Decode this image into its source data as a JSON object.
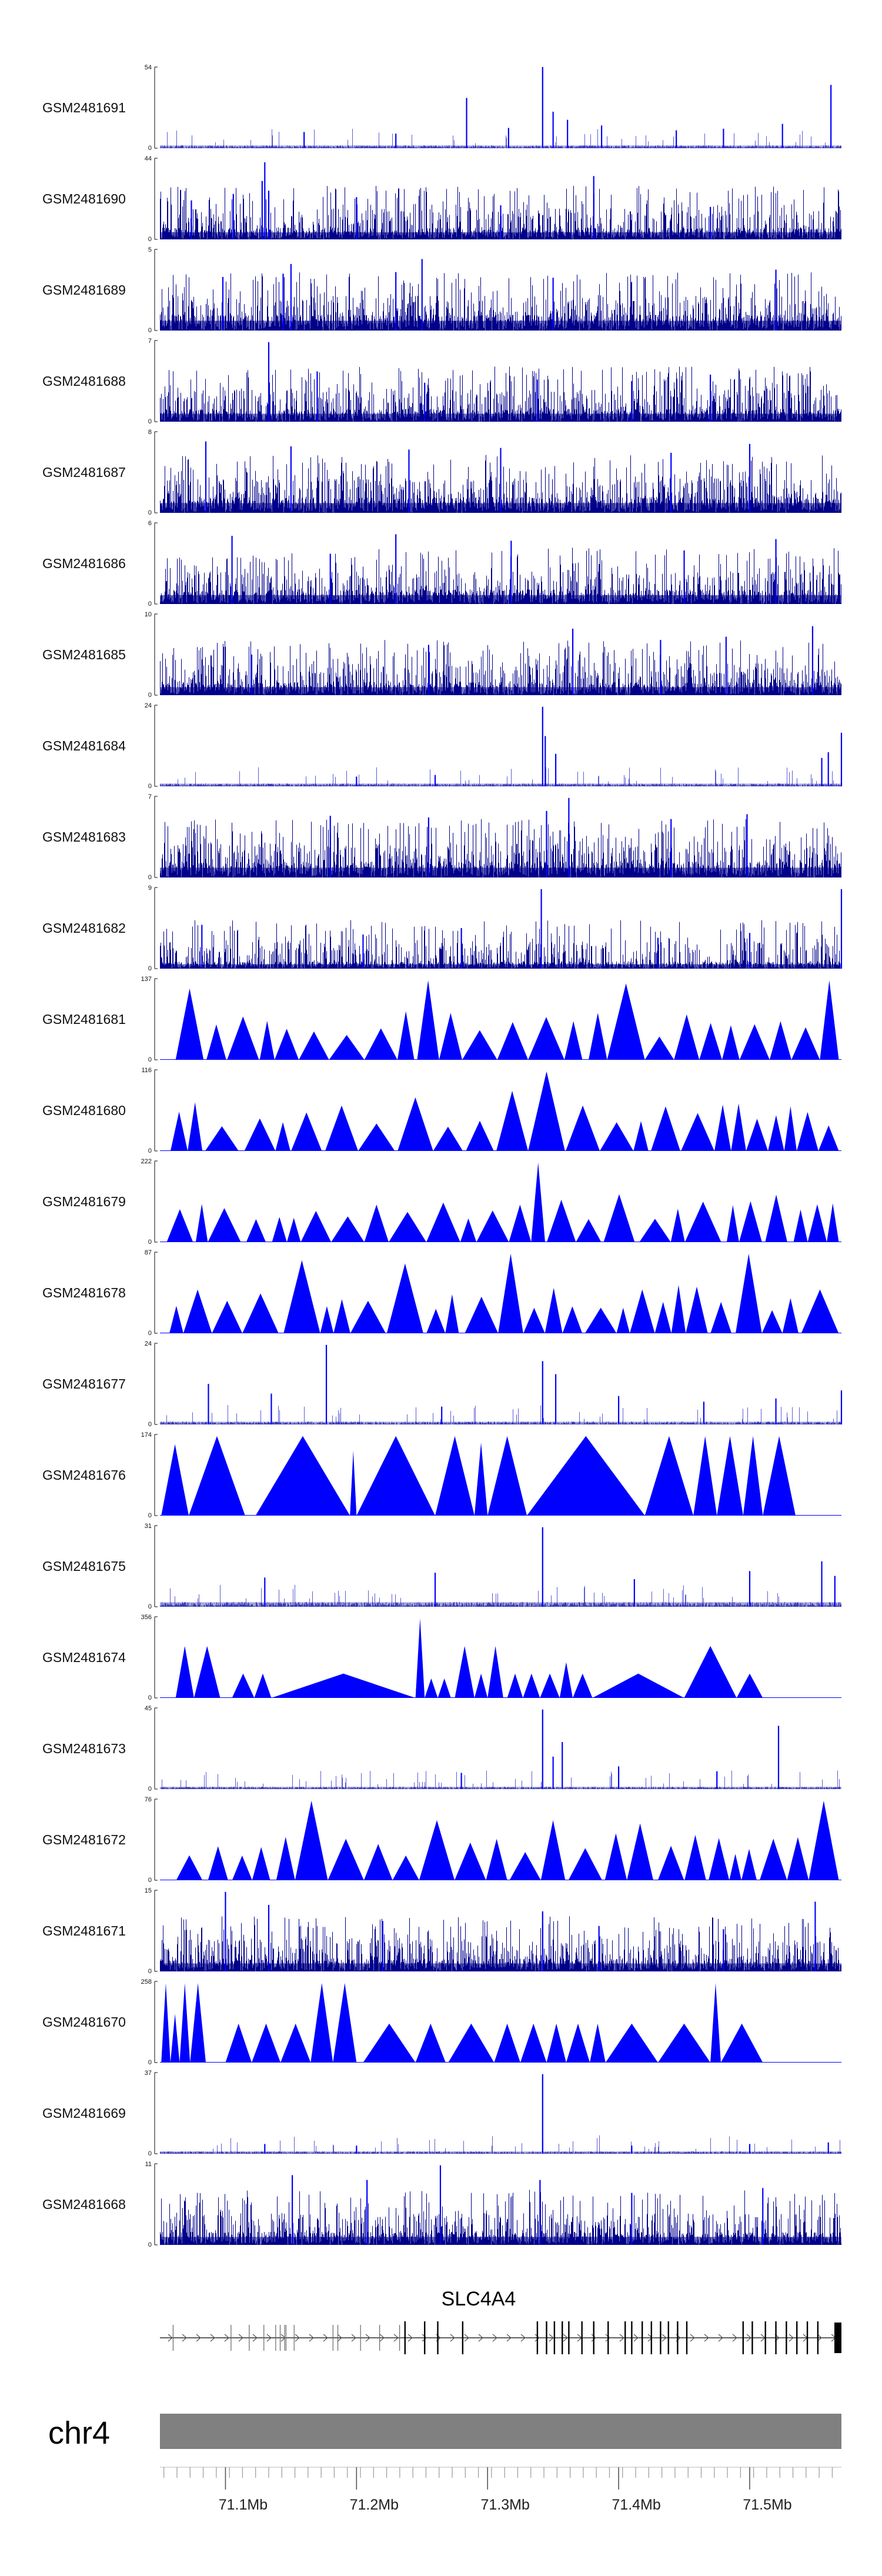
{
  "chart_data": {
    "type": "area",
    "title": "",
    "colors": {
      "fill": "#0000ff",
      "dense": "#00008b",
      "spike": "#5a5ad8",
      "axis": "#333333",
      "chromosome": "#808080",
      "gene": "#000000"
    },
    "x_range": [
      71.05,
      71.57
    ],
    "x_ticks": [
      71.1,
      71.2,
      71.3,
      71.4,
      71.5
    ],
    "x_tick_labels": [
      "71.1Mb",
      "71.2Mb",
      "71.3Mb",
      "71.4Mb",
      "71.5Mb"
    ],
    "chromosome": "chr4",
    "gene": {
      "name": "SLC4A4",
      "start": 71.05,
      "end": 71.57,
      "exons": [
        71.237,
        71.252,
        71.262,
        71.281,
        71.338,
        71.345,
        71.351,
        71.357,
        71.362,
        71.372,
        71.381,
        71.392,
        71.405,
        71.41,
        71.418,
        71.425,
        71.432,
        71.438,
        71.445,
        71.452,
        71.495,
        71.502,
        71.512,
        71.52,
        71.528,
        71.536,
        71.544,
        71.552
      ]
    },
    "tracks": [
      {
        "name": "GSM2481691",
        "ymax": "54",
        "ymax_value": 54,
        "style": "sparse",
        "base": 0.06,
        "spikes": [
          [
            71.284,
            0.62
          ],
          [
            71.342,
            1.0
          ],
          [
            71.35,
            0.45
          ],
          [
            71.361,
            0.35
          ],
          [
            71.387,
            0.28
          ],
          [
            71.444,
            0.22
          ],
          [
            71.562,
            0.78
          ],
          [
            71.16,
            0.2
          ],
          [
            71.23,
            0.18
          ],
          [
            71.316,
            0.25
          ],
          [
            71.48,
            0.24
          ],
          [
            71.525,
            0.3
          ]
        ]
      },
      {
        "name": "GSM2481690",
        "ymax": "44",
        "ymax_value": 44,
        "style": "dense",
        "base": 0.16,
        "spikes": [
          [
            71.128,
            0.72
          ],
          [
            71.133,
            0.6
          ],
          [
            71.13,
            0.95
          ],
          [
            71.381,
            0.78
          ],
          [
            71.2,
            0.52
          ],
          [
            71.074,
            0.48
          ],
          [
            71.106,
            0.56
          ],
          [
            71.31,
            0.42
          ],
          [
            71.47,
            0.4
          ]
        ]
      },
      {
        "name": "GSM2481689",
        "ymax": "5",
        "ymax_value": 5,
        "style": "dense",
        "base": 0.22,
        "spikes": [
          [
            71.15,
            0.82
          ],
          [
            71.144,
            0.7
          ],
          [
            71.23,
            0.72
          ],
          [
            71.25,
            0.88
          ],
          [
            71.35,
            0.65
          ],
          [
            71.52,
            0.75
          ],
          [
            71.098,
            0.66
          ]
        ]
      },
      {
        "name": "GSM2481688",
        "ymax": "7",
        "ymax_value": 7,
        "style": "dense",
        "base": 0.18,
        "spikes": [
          [
            71.133,
            0.98
          ],
          [
            71.17,
            0.62
          ],
          [
            71.338,
            0.52
          ],
          [
            71.47,
            0.58
          ],
          [
            71.252,
            0.48
          ],
          [
            71.41,
            0.5
          ]
        ]
      },
      {
        "name": "GSM2481687",
        "ymax": "8",
        "ymax_value": 8,
        "style": "dense",
        "base": 0.22,
        "spikes": [
          [
            71.085,
            0.88
          ],
          [
            71.15,
            0.82
          ],
          [
            71.24,
            0.78
          ],
          [
            71.31,
            0.8
          ],
          [
            71.44,
            0.74
          ],
          [
            71.5,
            0.85
          ]
        ]
      },
      {
        "name": "GSM2481686",
        "ymax": "6",
        "ymax_value": 6,
        "style": "dense",
        "base": 0.2,
        "spikes": [
          [
            71.105,
            0.84
          ],
          [
            71.23,
            0.86
          ],
          [
            71.318,
            0.78
          ],
          [
            71.45,
            0.66
          ],
          [
            71.52,
            0.8
          ],
          [
            71.18,
            0.62
          ]
        ]
      },
      {
        "name": "GSM2481685",
        "ymax": "10",
        "ymax_value": 10,
        "style": "dense",
        "base": 0.18,
        "spikes": [
          [
            71.365,
            0.82
          ],
          [
            71.432,
            0.68
          ],
          [
            71.548,
            0.85
          ],
          [
            71.255,
            0.62
          ],
          [
            71.12,
            0.5
          ],
          [
            71.482,
            0.72
          ]
        ]
      },
      {
        "name": "GSM2481684",
        "ymax": "24",
        "ymax_value": 24,
        "style": "sparse",
        "base": 0.06,
        "spikes": [
          [
            71.342,
            0.98
          ],
          [
            71.344,
            0.62
          ],
          [
            71.352,
            0.4
          ],
          [
            71.57,
            0.66
          ],
          [
            71.555,
            0.35
          ],
          [
            71.56,
            0.42
          ],
          [
            71.26,
            0.14
          ],
          [
            71.2,
            0.12
          ]
        ]
      },
      {
        "name": "GSM2481683",
        "ymax": "7",
        "ymax_value": 7,
        "style": "dense",
        "base": 0.22,
        "spikes": [
          [
            71.362,
            0.98
          ],
          [
            71.345,
            0.82
          ],
          [
            71.18,
            0.76
          ],
          [
            71.255,
            0.74
          ],
          [
            71.498,
            0.78
          ],
          [
            71.44,
            0.72
          ]
        ]
      },
      {
        "name": "GSM2481682",
        "ymax": "9",
        "ymax_value": 9,
        "style": "dense",
        "base": 0.1,
        "spikes": [
          [
            71.341,
            0.98
          ],
          [
            71.57,
            0.98
          ],
          [
            71.082,
            0.54
          ],
          [
            71.205,
            0.42
          ],
          [
            71.28,
            0.5
          ],
          [
            71.43,
            0.38
          ],
          [
            71.5,
            0.44
          ]
        ]
      },
      {
        "name": "GSM2481681",
        "ymax": "137",
        "ymax_value": 137,
        "style": "tri",
        "seed": 11,
        "peaks": [
          [
            71.074,
            0.88
          ],
          [
            71.085,
            0.4
          ],
          [
            71.25,
            0.98
          ],
          [
            71.24,
            0.6
          ],
          [
            71.264,
            0.5
          ],
          [
            71.401,
            0.94
          ],
          [
            71.444,
            0.56
          ],
          [
            71.566,
            0.98
          ],
          [
            71.56,
            0.5
          ]
        ]
      },
      {
        "name": "GSM2481680",
        "ymax": "116",
        "ymax_value": 116,
        "style": "tri",
        "seed": 23,
        "peaks": [
          [
            71.342,
            0.98
          ],
          [
            71.317,
            0.74
          ],
          [
            71.361,
            0.56
          ],
          [
            71.18,
            0.56
          ],
          [
            71.24,
            0.66
          ],
          [
            71.49,
            0.5
          ],
          [
            71.08,
            0.6
          ],
          [
            71.55,
            0.48
          ]
        ]
      },
      {
        "name": "GSM2481679",
        "ymax": "222",
        "ymax_value": 222,
        "style": "tri",
        "seed": 37,
        "peaks": [
          [
            71.342,
            0.98
          ],
          [
            71.338,
            0.5
          ],
          [
            71.365,
            0.32
          ],
          [
            71.062,
            0.3
          ],
          [
            71.09,
            0.22
          ],
          [
            71.458,
            0.22
          ],
          [
            71.545,
            0.2
          ]
        ]
      },
      {
        "name": "GSM2481678",
        "ymax": "87",
        "ymax_value": 87,
        "style": "tri",
        "seed": 41,
        "peaks": [
          [
            71.145,
            0.9
          ],
          [
            71.24,
            0.86
          ],
          [
            71.27,
            0.48
          ],
          [
            71.31,
            0.98
          ],
          [
            71.344,
            0.56
          ],
          [
            71.41,
            0.54
          ],
          [
            71.5,
            0.98
          ],
          [
            71.505,
            0.5
          ],
          [
            71.56,
            0.42
          ]
        ]
      },
      {
        "name": "GSM2481677",
        "ymax": "24",
        "ymax_value": 24,
        "style": "sparse",
        "base": 0.06,
        "spikes": [
          [
            71.087,
            0.5
          ],
          [
            71.135,
            0.38
          ],
          [
            71.177,
            0.98
          ],
          [
            71.342,
            0.78
          ],
          [
            71.352,
            0.62
          ],
          [
            71.4,
            0.35
          ],
          [
            71.52,
            0.32
          ],
          [
            71.57,
            0.42
          ],
          [
            71.265,
            0.22
          ],
          [
            71.465,
            0.28
          ]
        ]
      },
      {
        "name": "GSM2481676",
        "ymax": "174",
        "ymax_value": 174,
        "style": "tri",
        "seed": 53,
        "fixed": [
          [
            71.051,
            71.072,
            0.88
          ],
          [
            71.072,
            71.115,
            0.98
          ],
          [
            71.123,
            71.195,
            0.98
          ],
          [
            71.195,
            71.2,
            0.8
          ],
          [
            71.2,
            71.26,
            0.98
          ],
          [
            71.26,
            71.29,
            0.98
          ],
          [
            71.29,
            71.3,
            0.9
          ],
          [
            71.3,
            71.33,
            0.98
          ],
          [
            71.33,
            71.42,
            0.98
          ],
          [
            71.42,
            71.457,
            0.98
          ],
          [
            71.457,
            71.475,
            0.98
          ],
          [
            71.475,
            71.495,
            0.98
          ],
          [
            71.495,
            71.51,
            0.98
          ],
          [
            71.51,
            71.535,
            0.98
          ]
        ]
      },
      {
        "name": "GSM2481675",
        "ymax": "31",
        "ymax_value": 31,
        "style": "sparse",
        "base": 0.1,
        "spikes": [
          [
            71.342,
            0.98
          ],
          [
            71.26,
            0.42
          ],
          [
            71.13,
            0.36
          ],
          [
            71.412,
            0.34
          ],
          [
            71.5,
            0.44
          ],
          [
            71.555,
            0.56
          ],
          [
            71.565,
            0.38
          ]
        ]
      },
      {
        "name": "GSM2481674",
        "ymax": "356",
        "ymax_value": 356,
        "style": "tri",
        "seed": 61,
        "fixed": [
          [
            71.062,
            71.076,
            0.64
          ],
          [
            71.076,
            71.096,
            0.64
          ],
          [
            71.105,
            71.122,
            0.3
          ],
          [
            71.122,
            71.135,
            0.3
          ],
          [
            71.135,
            71.245,
            0.3
          ],
          [
            71.245,
            71.252,
            0.98
          ],
          [
            71.252,
            71.262,
            0.24
          ],
          [
            71.262,
            71.272,
            0.24
          ],
          [
            71.275,
            71.29,
            0.64
          ],
          [
            71.29,
            71.3,
            0.3
          ],
          [
            71.3,
            71.312,
            0.64
          ],
          [
            71.315,
            71.327,
            0.3
          ],
          [
            71.327,
            71.34,
            0.3
          ],
          [
            71.34,
            71.355,
            0.3
          ],
          [
            71.355,
            71.365,
            0.44
          ],
          [
            71.365,
            71.38,
            0.3
          ],
          [
            71.38,
            71.45,
            0.3
          ],
          [
            71.45,
            71.49,
            0.64
          ],
          [
            71.49,
            71.51,
            0.3
          ]
        ]
      },
      {
        "name": "GSM2481673",
        "ymax": "45",
        "ymax_value": 45,
        "style": "sparse",
        "base": 0.05,
        "spikes": [
          [
            71.342,
            0.98
          ],
          [
            71.357,
            0.58
          ],
          [
            71.35,
            0.4
          ],
          [
            71.4,
            0.28
          ],
          [
            71.475,
            0.22
          ],
          [
            71.522,
            0.78
          ],
          [
            71.28,
            0.2
          ]
        ]
      },
      {
        "name": "GSM2481672",
        "ymax": "76",
        "ymax_value": 76,
        "style": "tri",
        "seed": 71,
        "peaks": [
          [
            71.172,
            0.98
          ],
          [
            71.25,
            0.72
          ],
          [
            71.272,
            0.74
          ],
          [
            71.342,
            0.74
          ],
          [
            71.41,
            0.7
          ],
          [
            71.568,
            0.98
          ],
          [
            71.14,
            0.5
          ]
        ]
      },
      {
        "name": "GSM2481671",
        "ymax": "15",
        "ymax_value": 15,
        "style": "dense",
        "base": 0.18,
        "spikes": [
          [
            71.1,
            0.98
          ],
          [
            71.133,
            0.82
          ],
          [
            71.22,
            0.62
          ],
          [
            71.342,
            0.74
          ],
          [
            71.385,
            0.56
          ],
          [
            71.55,
            0.86
          ],
          [
            71.48,
            0.52
          ]
        ]
      },
      {
        "name": "GSM2481670",
        "ymax": "258",
        "ymax_value": 258,
        "style": "tri",
        "seed": 83,
        "fixed": [
          [
            71.051,
            71.058,
            0.98
          ],
          [
            71.058,
            71.065,
            0.6
          ],
          [
            71.065,
            71.073,
            0.98
          ],
          [
            71.073,
            71.085,
            0.98
          ],
          [
            71.1,
            71.12,
            0.48
          ],
          [
            71.12,
            71.142,
            0.48
          ],
          [
            71.142,
            71.165,
            0.48
          ],
          [
            71.165,
            71.182,
            0.98
          ],
          [
            71.182,
            71.2,
            0.98
          ],
          [
            71.205,
            71.245,
            0.48
          ],
          [
            71.245,
            71.268,
            0.48
          ],
          [
            71.27,
            71.305,
            0.48
          ],
          [
            71.305,
            71.325,
            0.48
          ],
          [
            71.325,
            71.345,
            0.48
          ],
          [
            71.345,
            71.36,
            0.48
          ],
          [
            71.36,
            71.378,
            0.48
          ],
          [
            71.378,
            71.39,
            0.48
          ],
          [
            71.39,
            71.43,
            0.48
          ],
          [
            71.43,
            71.47,
            0.48
          ],
          [
            71.47,
            71.478,
            0.98
          ],
          [
            71.478,
            71.51,
            0.48
          ]
        ]
      },
      {
        "name": "GSM2481669",
        "ymax": "37",
        "ymax_value": 37,
        "style": "sparse",
        "base": 0.05,
        "spikes": [
          [
            71.342,
            0.98
          ],
          [
            71.13,
            0.12
          ],
          [
            71.2,
            0.1
          ],
          [
            71.41,
            0.1
          ],
          [
            71.5,
            0.12
          ],
          [
            71.56,
            0.14
          ]
        ]
      },
      {
        "name": "GSM2481668",
        "ymax": "11",
        "ymax_value": 11,
        "style": "dense",
        "base": 0.18,
        "spikes": [
          [
            71.151,
            0.86
          ],
          [
            71.208,
            0.8
          ],
          [
            71.264,
            0.98
          ],
          [
            71.34,
            0.8
          ],
          [
            71.41,
            0.64
          ],
          [
            71.51,
            0.7
          ]
        ]
      }
    ]
  }
}
